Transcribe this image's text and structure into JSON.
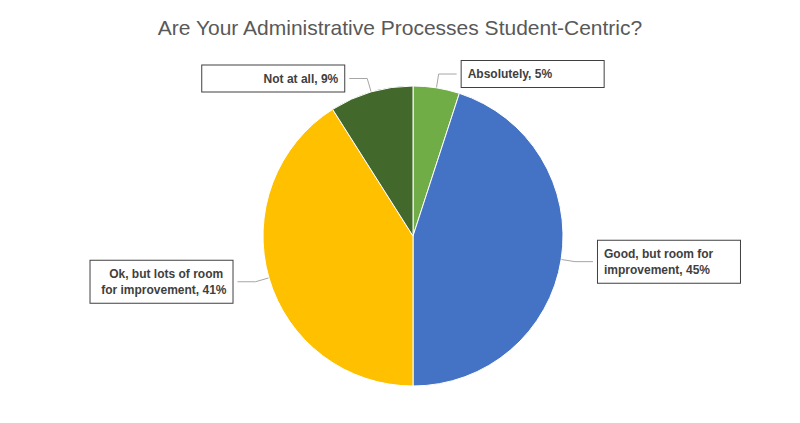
{
  "chart_data": {
    "type": "pie",
    "title": "Are Your Administrative Processes Student-Centric?",
    "categories": [
      "Absolutely",
      "Good, but room for improvement",
      "Ok, but lots of room for improvement",
      "Not at all"
    ],
    "values": [
      5,
      45,
      41,
      9
    ],
    "value_labels": [
      "Absolutely, 5%",
      "Good, but room for improvement, 45%",
      "Ok, but lots of room for improvement, 41%",
      "Not at all, 9%"
    ],
    "colors": [
      "#70ad47",
      "#4472c4",
      "#ffc000",
      "#43682b"
    ],
    "data_labels": true
  }
}
